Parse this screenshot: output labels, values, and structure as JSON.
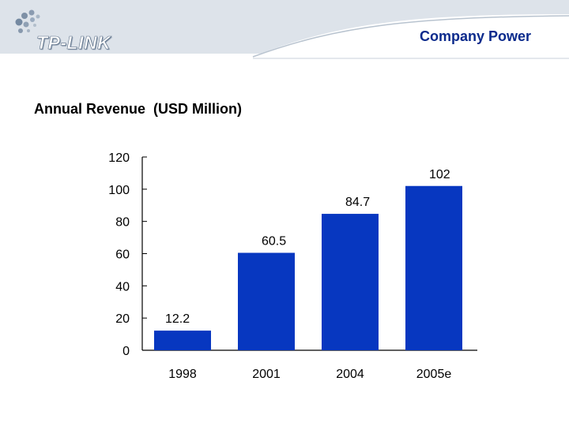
{
  "header": {
    "logo_text": "TP-LINK",
    "company_label": "Company Power",
    "band_color": "#dde3ea"
  },
  "subtitle": "Annual Revenue  (USD Million)",
  "chart_data": {
    "type": "bar",
    "title": "",
    "xlabel": "",
    "ylabel": "",
    "categories": [
      "1998",
      "2001",
      "2004",
      "2005e"
    ],
    "values": [
      12.2,
      60.5,
      84.7,
      102
    ],
    "value_labels": [
      "12.2",
      "60.5",
      "84.7",
      "102"
    ],
    "ylim": [
      0,
      120
    ],
    "yticks": [
      0,
      20,
      40,
      60,
      80,
      100,
      120
    ],
    "grid": false,
    "legend": "none",
    "bar_color": "#0737c0"
  }
}
